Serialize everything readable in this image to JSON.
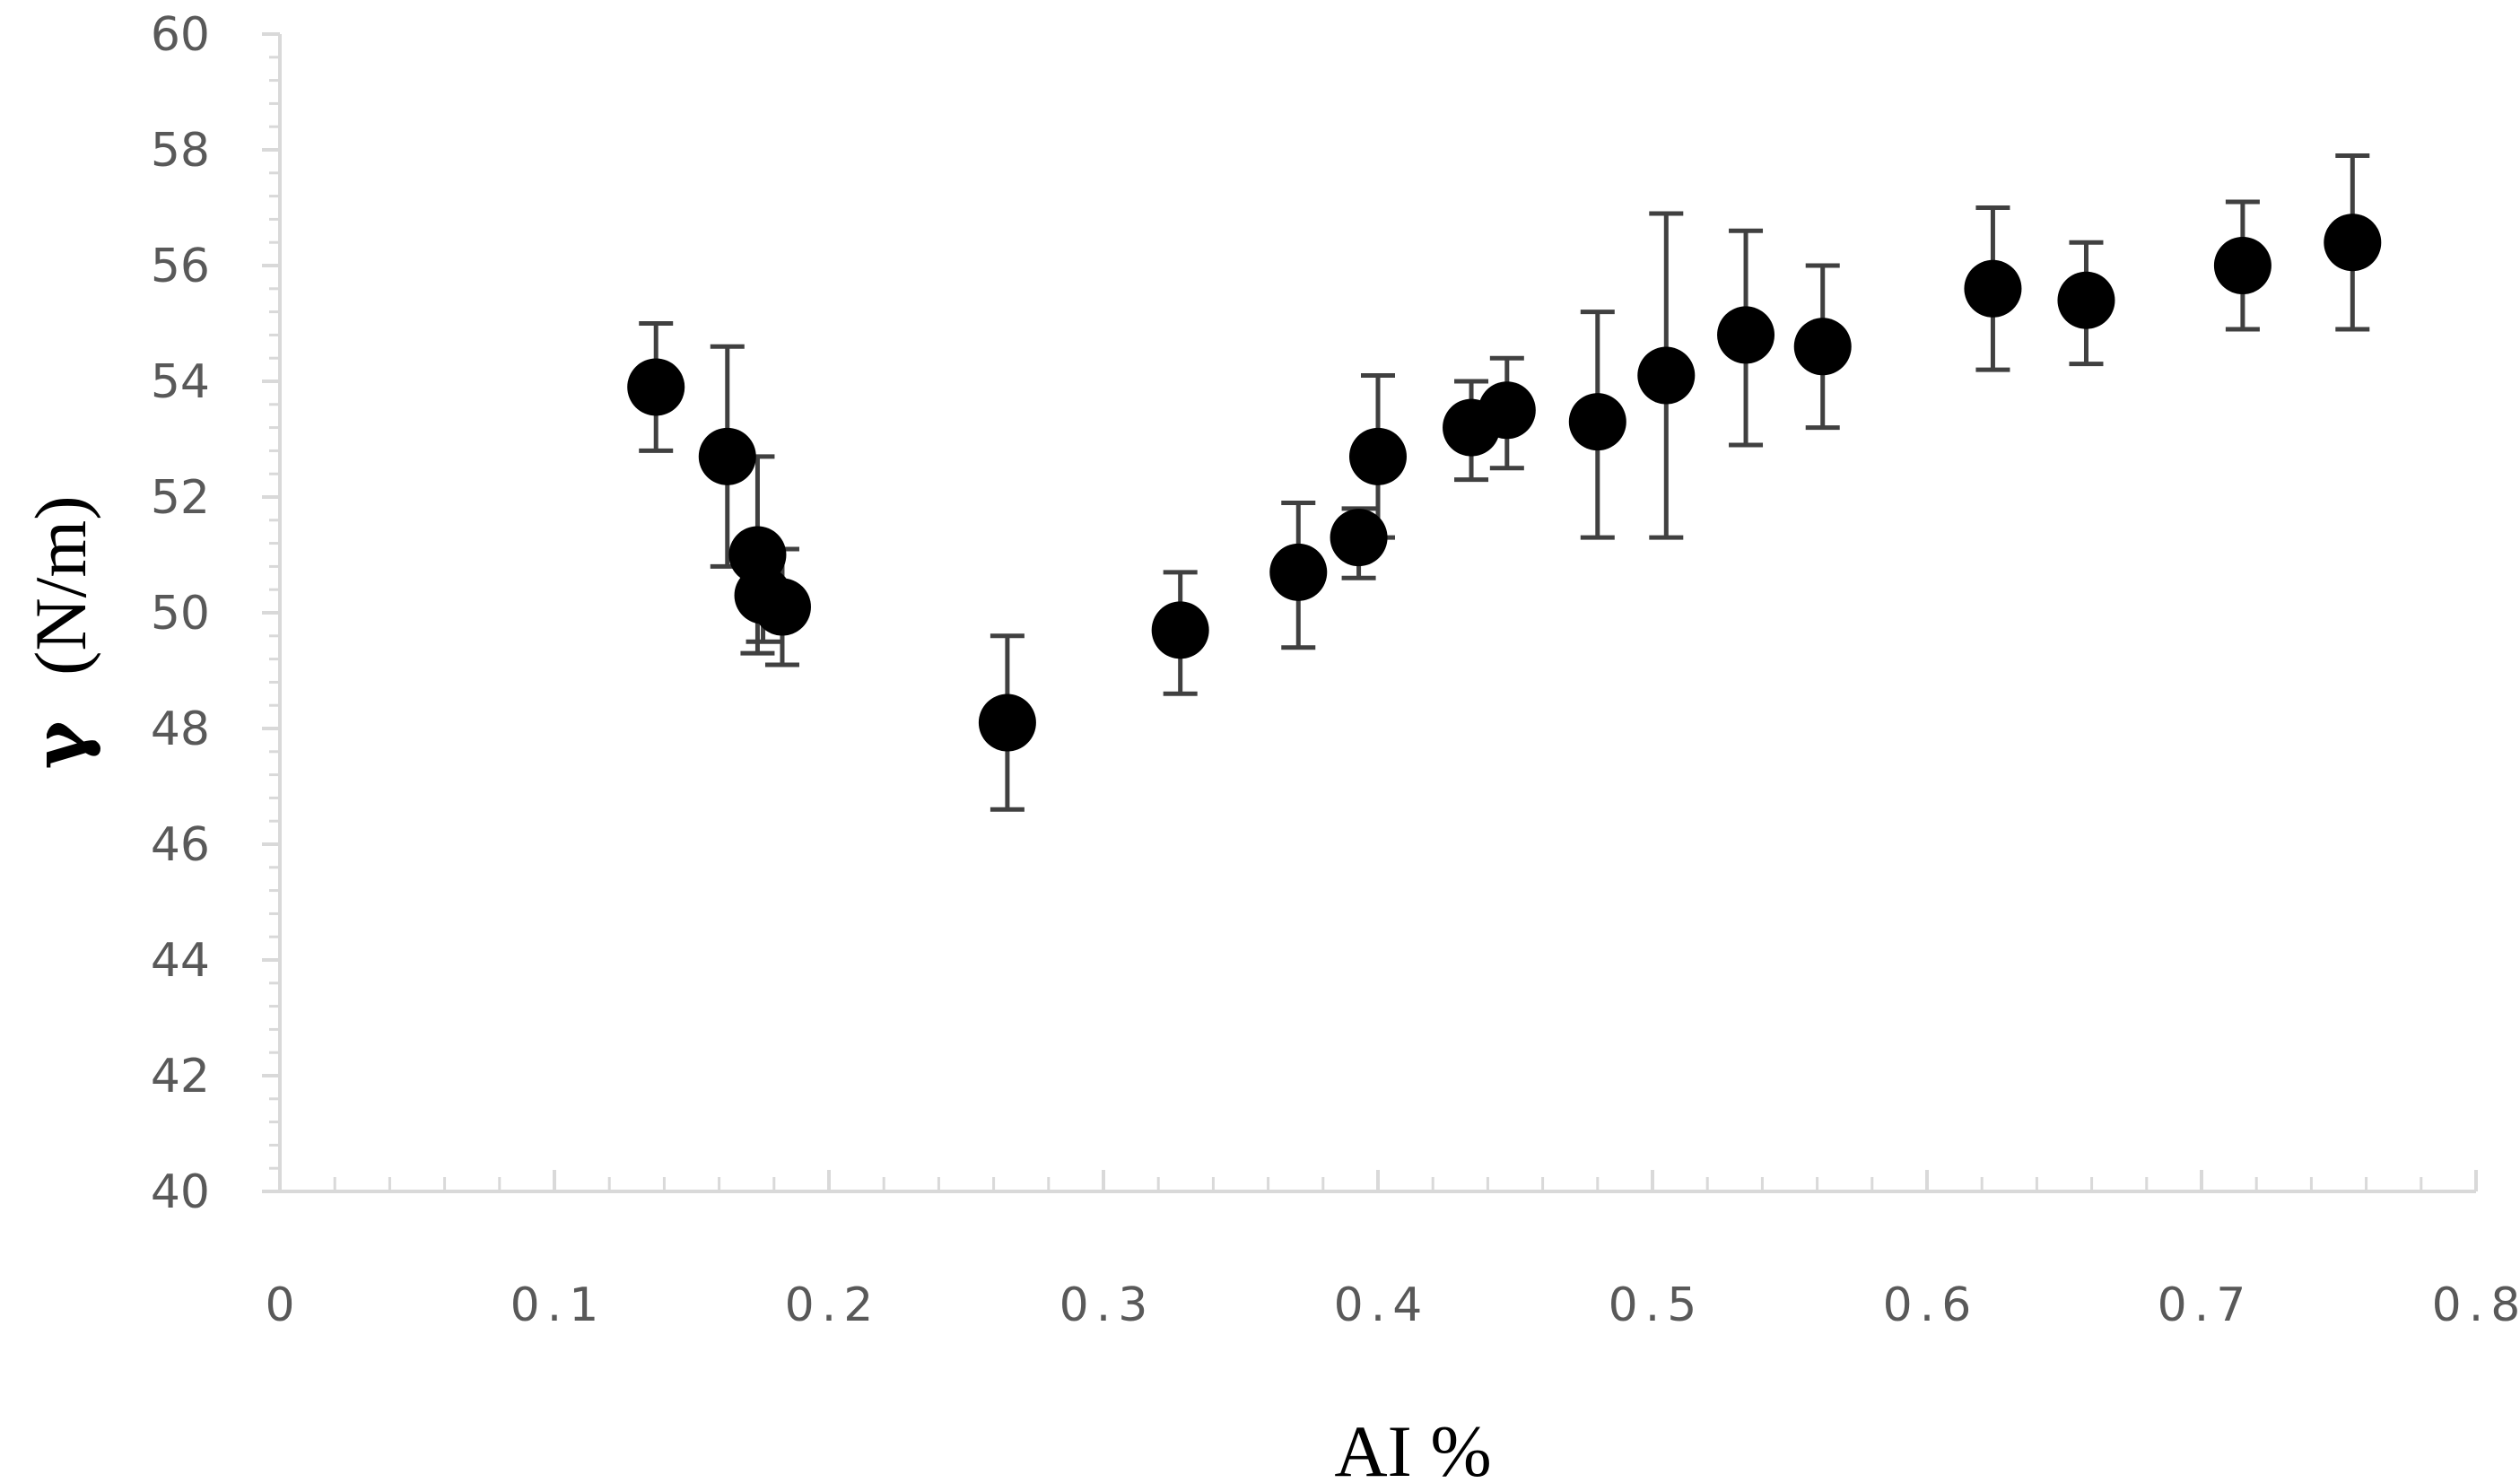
{
  "chart_data": {
    "type": "scatter",
    "xlabel": "AI %",
    "ylabel_symbol": "γ",
    "ylabel_unit": "(N/m)",
    "xlim": [
      0,
      0.8
    ],
    "ylim": [
      40,
      60
    ],
    "x_major_ticks": [
      0,
      0.1,
      0.2,
      0.3,
      0.4,
      0.5,
      0.6,
      0.7,
      0.8
    ],
    "x_tick_labels": [
      "0",
      "0.1",
      "0.2",
      "0.3",
      "0.4",
      "0.5",
      "0.6",
      "0.7",
      "0.8"
    ],
    "x_minor_step": 0.02,
    "y_major_ticks": [
      40,
      42,
      44,
      46,
      48,
      50,
      52,
      54,
      56,
      58,
      60
    ],
    "y_tick_labels": [
      "40",
      "42",
      "44",
      "46",
      "48",
      "50",
      "52",
      "54",
      "56",
      "58",
      "60"
    ],
    "y_minor_step": 0.4,
    "grid": false,
    "marker_color": "#000000",
    "errorbar_color": "#404040",
    "axis_color": "#d9d9d9",
    "points": [
      {
        "x": 0.137,
        "y": 53.9,
        "err_low": 52.8,
        "err_high": 55.0
      },
      {
        "x": 0.163,
        "y": 52.7,
        "err_low": 50.8,
        "err_high": 54.6
      },
      {
        "x": 0.174,
        "y": 51.0,
        "err_low": 49.3,
        "err_high": 52.7
      },
      {
        "x": 0.176,
        "y": 50.3,
        "err_low": 49.5,
        "err_high": 51.1
      },
      {
        "x": 0.183,
        "y": 50.1,
        "err_low": 49.1,
        "err_high": 51.1
      },
      {
        "x": 0.265,
        "y": 48.1,
        "err_low": 46.6,
        "err_high": 49.6
      },
      {
        "x": 0.328,
        "y": 49.7,
        "err_low": 48.6,
        "err_high": 50.7
      },
      {
        "x": 0.371,
        "y": 50.7,
        "err_low": 49.4,
        "err_high": 51.9
      },
      {
        "x": 0.393,
        "y": 51.3,
        "err_low": 50.6,
        "err_high": 51.8
      },
      {
        "x": 0.4,
        "y": 52.7,
        "err_low": 51.3,
        "err_high": 54.1
      },
      {
        "x": 0.434,
        "y": 53.2,
        "err_low": 52.3,
        "err_high": 54.0
      },
      {
        "x": 0.447,
        "y": 53.5,
        "err_low": 52.5,
        "err_high": 54.4
      },
      {
        "x": 0.48,
        "y": 53.3,
        "err_low": 51.3,
        "err_high": 55.2
      },
      {
        "x": 0.505,
        "y": 54.1,
        "err_low": 51.3,
        "err_high": 56.9
      },
      {
        "x": 0.534,
        "y": 54.8,
        "err_low": 52.9,
        "err_high": 56.6
      },
      {
        "x": 0.562,
        "y": 54.6,
        "err_low": 53.2,
        "err_high": 56.0
      },
      {
        "x": 0.624,
        "y": 55.6,
        "err_low": 54.2,
        "err_high": 57.0
      },
      {
        "x": 0.658,
        "y": 55.4,
        "err_low": 54.3,
        "err_high": 56.4
      },
      {
        "x": 0.715,
        "y": 56.0,
        "err_low": 54.9,
        "err_high": 57.1
      },
      {
        "x": 0.755,
        "y": 56.4,
        "err_low": 54.9,
        "err_high": 57.9
      }
    ]
  }
}
